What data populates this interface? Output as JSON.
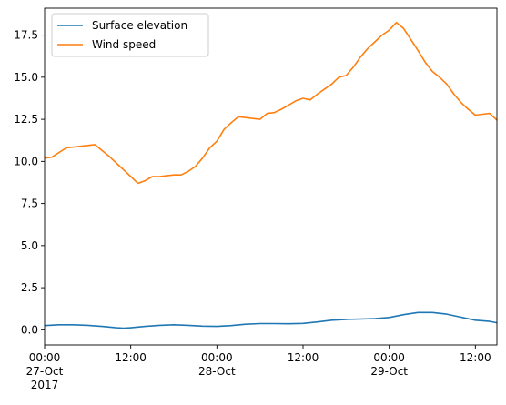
{
  "chart_data": {
    "type": "line",
    "title": "",
    "xlabel": "",
    "ylabel": "",
    "x_unit": "hours since 2017-10-27 00:00",
    "xlim": [
      0,
      63
    ],
    "ylim": [
      -0.9,
      19.1
    ],
    "grid": false,
    "legend_position": "top-left",
    "x_ticks": [
      {
        "x": 0,
        "lines": [
          "00:00",
          "27-Oct",
          "2017"
        ]
      },
      {
        "x": 12,
        "lines": [
          "12:00"
        ]
      },
      {
        "x": 24,
        "lines": [
          "00:00",
          "28-Oct"
        ]
      },
      {
        "x": 36,
        "lines": [
          "12:00"
        ]
      },
      {
        "x": 48,
        "lines": [
          "00:00",
          "29-Oct"
        ]
      },
      {
        "x": 60,
        "lines": [
          "12:00"
        ]
      }
    ],
    "y_ticks": [
      {
        "y": 0.0,
        "label": "0.0"
      },
      {
        "y": 2.5,
        "label": "2.5"
      },
      {
        "y": 5.0,
        "label": "5.0"
      },
      {
        "y": 7.5,
        "label": "7.5"
      },
      {
        "y": 10.0,
        "label": "10.0"
      },
      {
        "y": 12.5,
        "label": "12.5"
      },
      {
        "y": 15.0,
        "label": "15.0"
      },
      {
        "y": 17.5,
        "label": "17.5"
      }
    ],
    "series": [
      {
        "name": "Surface elevation",
        "color": "#1f77b4",
        "x": [
          0,
          2,
          4,
          6,
          8,
          10,
          11,
          12,
          14,
          16,
          18,
          20,
          22,
          24,
          26,
          28,
          30,
          32,
          34,
          36,
          38,
          40,
          42,
          44,
          46,
          48,
          50,
          52,
          54,
          56,
          58,
          60,
          62,
          63
        ],
        "y": [
          0.25,
          0.3,
          0.3,
          0.27,
          0.2,
          0.12,
          0.1,
          0.12,
          0.2,
          0.27,
          0.3,
          0.27,
          0.22,
          0.2,
          0.25,
          0.33,
          0.37,
          0.37,
          0.36,
          0.38,
          0.47,
          0.57,
          0.62,
          0.64,
          0.67,
          0.73,
          0.9,
          1.03,
          1.03,
          0.93,
          0.75,
          0.57,
          0.5,
          0.42
        ]
      },
      {
        "name": "Wind speed",
        "color": "#ff7f0e",
        "x": [
          0,
          1,
          3,
          5,
          7,
          9,
          11,
          12,
          13,
          14,
          15,
          16,
          17,
          18,
          19,
          20,
          21,
          22,
          23,
          24,
          25,
          26,
          27,
          28,
          29,
          30,
          31,
          32,
          33,
          34,
          35,
          36,
          37,
          38,
          39,
          40,
          41,
          42,
          43,
          44,
          45,
          46,
          47,
          48,
          49,
          50,
          51,
          52,
          53,
          54,
          55,
          56,
          57,
          58,
          59,
          60,
          61,
          62,
          63
        ],
        "y": [
          10.2,
          10.25,
          10.8,
          10.9,
          11.0,
          10.3,
          9.5,
          9.1,
          8.7,
          8.85,
          9.1,
          9.1,
          9.15,
          9.2,
          9.2,
          9.4,
          9.7,
          10.2,
          10.8,
          11.2,
          11.9,
          12.3,
          12.65,
          12.6,
          12.55,
          12.5,
          12.85,
          12.9,
          13.1,
          13.35,
          13.6,
          13.75,
          13.65,
          14.0,
          14.3,
          14.6,
          15.0,
          15.1,
          15.6,
          16.2,
          16.7,
          17.1,
          17.5,
          17.8,
          18.25,
          17.9,
          17.25,
          16.6,
          15.9,
          15.35,
          15.0,
          14.6,
          14.0,
          13.5,
          13.1,
          12.75,
          12.8,
          12.85,
          12.45
        ]
      }
    ]
  }
}
